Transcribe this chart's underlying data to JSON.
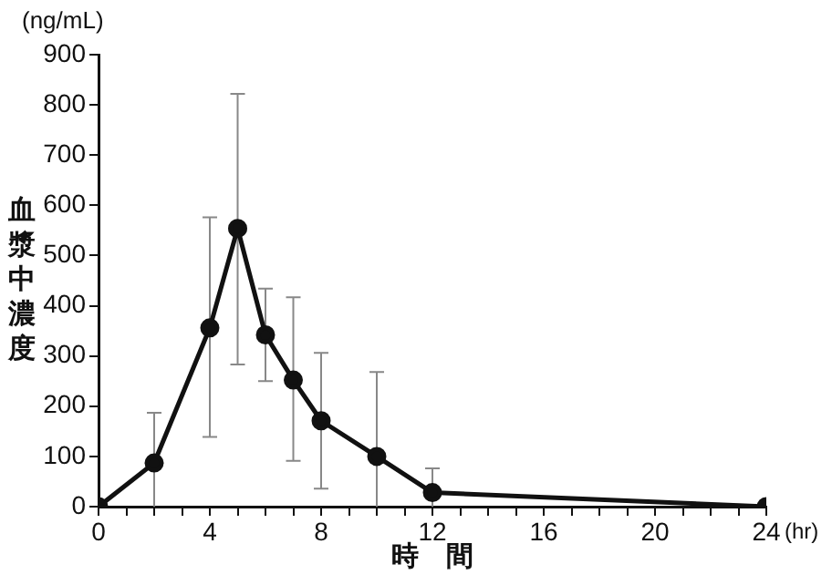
{
  "chart_data": {
    "type": "line",
    "xlabel": "時　間",
    "ylabel": "血漿中濃度",
    "annotations": [
      "(ng/mL)",
      "(hr)"
    ],
    "x": [
      0,
      2,
      4,
      5,
      6,
      7,
      8,
      10,
      12,
      24
    ],
    "series": [
      {
        "color": "#111111",
        "values": [
          0,
          87,
          356,
          554,
          342,
          252,
          171,
          100,
          28,
          0
        ],
        "errors": [
          null,
          [
            0,
            187
          ],
          [
            139,
            576
          ],
          [
            283,
            822
          ],
          [
            250,
            434
          ],
          [
            91,
            417
          ],
          [
            36,
            306
          ],
          [
            0,
            268
          ],
          [
            0,
            76
          ],
          null
        ]
      }
    ],
    "xlim": [
      0,
      24
    ],
    "xticks": [
      0,
      {
        "value": 1,
        "label": null
      },
      {
        "value": 2,
        "label": null
      },
      {
        "value": 3,
        "label": null
      },
      4,
      {
        "value": 5,
        "label": null
      },
      {
        "value": 6,
        "label": null
      },
      {
        "value": 7,
        "label": null
      },
      8,
      {
        "value": 9,
        "label": null
      },
      {
        "value": 10,
        "label": null
      },
      {
        "value": 11,
        "label": null
      },
      12,
      {
        "value": 13,
        "label": null
      },
      {
        "value": 14,
        "label": null
      },
      {
        "value": 15,
        "label": null
      },
      16,
      {
        "value": 17,
        "label": null
      },
      {
        "value": 18,
        "label": null
      },
      {
        "value": 19,
        "label": null
      },
      20,
      {
        "value": 21,
        "label": null
      },
      {
        "value": 22,
        "label": null
      },
      {
        "value": 23,
        "label": null
      },
      24
    ],
    "ylim": [
      0,
      900
    ],
    "yticks": [
      0,
      100,
      200,
      300,
      400,
      500,
      600,
      700,
      800,
      900
    ],
    "grid": false,
    "legend": false,
    "marker": "circle",
    "line_style": "solid"
  }
}
